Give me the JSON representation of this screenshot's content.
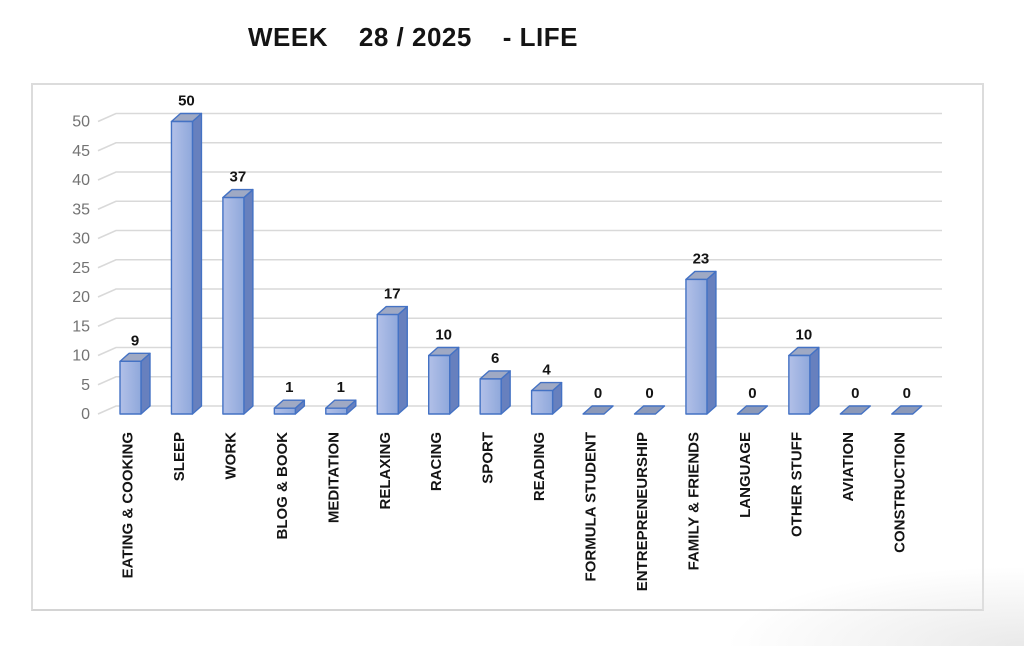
{
  "title": "WEEK    28 / 2025    - LIFE",
  "chart_data": {
    "type": "bar",
    "style": "3d-clustered-column",
    "title": "WEEK 28 / 2025 - LIFE",
    "categories": [
      "EATING & COOKING",
      "SLEEP",
      "WORK",
      "BLOG & BOOK",
      "MEDITATION",
      "RELAXING",
      "RACING",
      "SPORT",
      "READING",
      "FORMULA STUDENT",
      "ENTREPRENEURSHIP",
      "FAMILY & FRIENDS",
      "LANGUAGE",
      "OTHER STUFF",
      "AVIATION",
      "CONSTRUCTION"
    ],
    "values": [
      9,
      50,
      37,
      1,
      1,
      17,
      10,
      6,
      4,
      0,
      0,
      23,
      0,
      10,
      0,
      0
    ],
    "data_labels_shown": true,
    "xlabel": "",
    "ylabel": "",
    "ylim": [
      0,
      50
    ],
    "yticks": [
      0,
      5,
      10,
      15,
      20,
      25,
      30,
      35,
      40,
      45,
      50
    ],
    "legend": false,
    "grid": true,
    "colors": {
      "bar_front": "#8FA8DB",
      "bar_front_light": "#B2C0E8",
      "bar_side": "#6780BE",
      "bar_top": "#9FA9C4",
      "bar_outline": "#4472C4",
      "zero_marker_fill": "#8C99B8",
      "gridline": "#D9D9D9",
      "tick_text": "#737373",
      "value_label_text": "#141414",
      "category_label_text": "#141414",
      "panel_border": "#DCDCDC"
    }
  }
}
